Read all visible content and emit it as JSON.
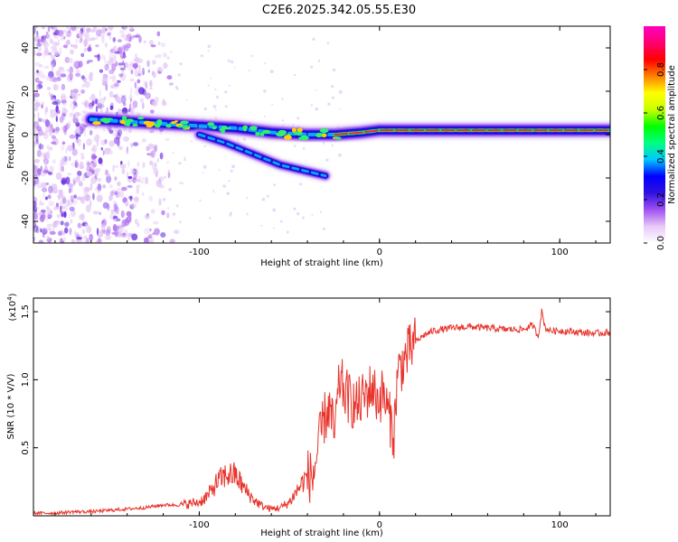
{
  "title": "C2E6.2025.342.05.55.E30",
  "chart_data": [
    {
      "type": "heatmap",
      "name": "spectrogram",
      "xlabel": "Height of straight line (km)",
      "ylabel": "Frequency (Hz)",
      "xlim": [
        -192,
        128
      ],
      "ylim": [
        -50,
        50
      ],
      "xticks": [
        -100,
        0,
        100
      ],
      "xtick_labels": [
        "-100",
        "0",
        "100"
      ],
      "yticks": [
        -40,
        -20,
        0,
        20,
        40
      ],
      "ytick_labels": [
        "-40",
        "-20",
        "0",
        "20",
        "40"
      ],
      "colorbar": {
        "label": "Normalized spectral amplitude",
        "range": [
          0,
          1
        ],
        "ticks": [
          0.0,
          0.2,
          0.4,
          0.6,
          0.8
        ],
        "tick_labels": [
          "0.0",
          "0.2",
          "0.4",
          "0.6",
          "0.8"
        ],
        "colors": [
          "#ffffff",
          "#e8c8f8",
          "#a050f0",
          "#3010e0",
          "#0000ff",
          "#00c8ff",
          "#00ff80",
          "#00ff00",
          "#c8ff00",
          "#ffff00",
          "#ff8000",
          "#ff0000",
          "#ff0070",
          "#ff00c0"
        ]
      },
      "ridges": [
        {
          "name": "main-branch",
          "x": [
            -160,
            -140,
            -120,
            -100,
            -80,
            -60,
            -40,
            -25,
            -10,
            0,
            20,
            60,
            100,
            128
          ],
          "y": [
            7,
            6,
            5,
            4,
            3,
            1,
            0,
            0,
            1,
            2,
            2,
            2,
            2,
            2
          ]
        },
        {
          "name": "lower-branch",
          "x": [
            -100,
            -85,
            -70,
            -55,
            -40,
            -30
          ],
          "y": [
            0,
            -4,
            -9,
            -14,
            -17,
            -19
          ]
        }
      ]
    },
    {
      "type": "line",
      "name": "snr",
      "xlabel": "Height of straight line (km)",
      "ylabel": "SNR (10 * V/V)",
      "yscale_label": "(x10",
      "yscale_exp": "4",
      "yscale_close": ")",
      "xlim": [
        -192,
        128
      ],
      "ylim": [
        0,
        1.6
      ],
      "xticks": [
        -100,
        0,
        100
      ],
      "xtick_labels": [
        "-100",
        "0",
        "100"
      ],
      "yticks": [
        0.5,
        1.0,
        1.5
      ],
      "ytick_labels": [
        "0.5",
        "1.0",
        "1.5"
      ],
      "series": [
        {
          "name": "SNR",
          "color": "#e8342c",
          "x": [
            -192,
            -180,
            -170,
            -160,
            -150,
            -140,
            -130,
            -120,
            -110,
            -100,
            -95,
            -90,
            -85,
            -80,
            -75,
            -70,
            -65,
            -60,
            -55,
            -50,
            -45,
            -40,
            -37,
            -34,
            -31,
            -28,
            -25,
            -22,
            -19,
            -16,
            -13,
            -10,
            -7,
            -4,
            -1,
            2,
            5,
            8,
            10,
            12,
            14,
            16,
            20,
            25,
            30,
            40,
            50,
            60,
            70,
            80,
            85,
            88,
            90,
            92,
            95,
            100,
            110,
            120,
            128
          ],
          "y": [
            0.02,
            0.02,
            0.03,
            0.03,
            0.04,
            0.05,
            0.06,
            0.08,
            0.08,
            0.1,
            0.15,
            0.25,
            0.3,
            0.3,
            0.2,
            0.12,
            0.07,
            0.05,
            0.06,
            0.1,
            0.2,
            0.3,
            0.28,
            0.5,
            0.7,
            0.8,
            0.6,
            1.0,
            0.9,
            0.85,
            0.8,
            0.85,
            0.9,
            0.95,
            0.85,
            0.9,
            0.75,
            0.6,
            1.05,
            1.1,
            1.15,
            1.2,
            1.28,
            1.33,
            1.36,
            1.38,
            1.39,
            1.38,
            1.37,
            1.37,
            1.4,
            1.32,
            1.5,
            1.38,
            1.36,
            1.36,
            1.35,
            1.34,
            1.35
          ]
        }
      ]
    }
  ]
}
